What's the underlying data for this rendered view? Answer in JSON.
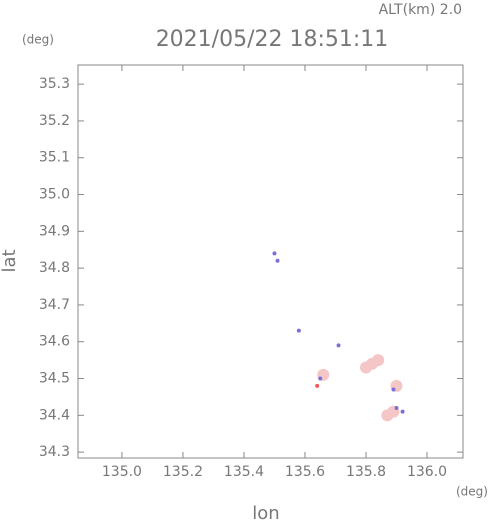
{
  "chart_data": {
    "type": "scatter",
    "title": "2021/05/22 18:51:11",
    "subtitle": "ALT(km) 2.0",
    "y_unit": "(deg)",
    "x_unit": "(deg)",
    "xlabel": "lon",
    "ylabel": "lat",
    "xlim": [
      134.856,
      136.118
    ],
    "ylim": [
      34.284,
      35.352
    ],
    "xticks": [
      {
        "value": 135,
        "label": "135.0"
      },
      135.2,
      135.4,
      135.6,
      135.8,
      {
        "value": 136,
        "label": "136.0"
      }
    ],
    "yticks": [
      34.3,
      34.4,
      34.5,
      34.6,
      34.7,
      34.8,
      34.9,
      {
        "value": 35,
        "label": "35.0"
      },
      35.1,
      35.2,
      35.3
    ],
    "grid": false,
    "series": [
      {
        "color": "#f4c6c6",
        "x": [
          135.8,
          135.82,
          135.84,
          135.9,
          135.87,
          135.89,
          135.66
        ],
        "values": [
          34.53,
          34.54,
          34.55,
          34.48,
          34.4,
          34.41,
          34.51
        ]
      },
      {
        "color": "#7b6fd8",
        "x": [
          135.5,
          135.51,
          135.58,
          135.71,
          135.65,
          135.89,
          135.9,
          135.92
        ],
        "values": [
          34.84,
          34.82,
          34.63,
          34.59,
          34.5,
          34.47,
          34.42,
          34.41
        ]
      },
      {
        "color": "#ec5a5a",
        "x": [
          135.64
        ],
        "values": [
          34.48
        ]
      }
    ]
  }
}
